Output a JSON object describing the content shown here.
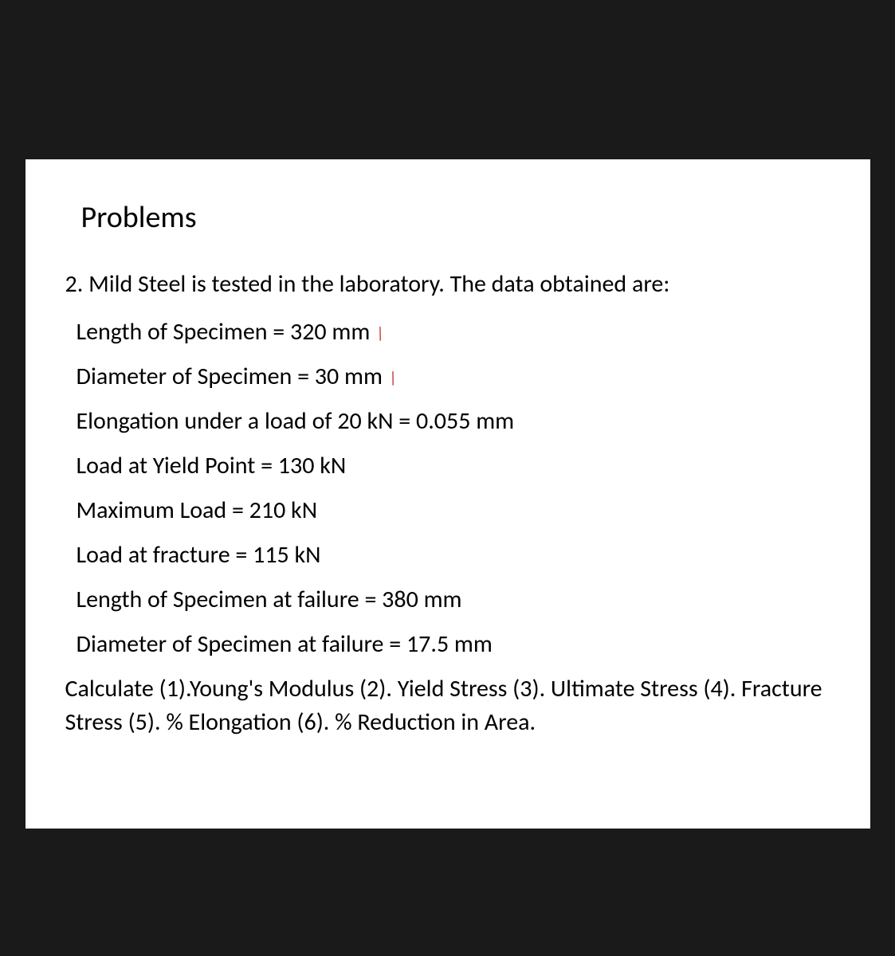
{
  "slide": {
    "title": "Problems",
    "problem_number": "2.",
    "intro": "Mild Steel is tested in the laboratory. The data obtained are:",
    "data_lines": [
      {
        "text": "Length of Specimen = 320 mm",
        "has_tick": true
      },
      {
        "text": "Diameter of Specimen = 30 mm",
        "has_tick": true
      },
      {
        "text": "Elongation under a load of 20 kN = 0.055 mm",
        "has_tick": false
      },
      {
        "text": "Load at Yield Point = 130 kN",
        "has_tick": false
      },
      {
        "text": "Maximum Load = 210 kN",
        "has_tick": false
      },
      {
        "text": "Load at fracture = 115 kN",
        "has_tick": false
      },
      {
        "text": "Length of Specimen at failure = 380 mm",
        "has_tick": false
      },
      {
        "text": "Diameter of Specimen at failure = 17.5 mm",
        "has_tick": false
      }
    ],
    "calculate": "Calculate (1).Young's Modulus (2). Yield Stress (3). Ultimate Stress (4). Fracture Stress (5). % Elongation (6). % Reduction in Area.",
    "tick_glyph": "/"
  },
  "style": {
    "background_color": "#1a1a1a",
    "slide_bg": "#ffffff",
    "text_color": "#000000",
    "tick_color": "#cc3333",
    "title_fontsize": 38,
    "body_fontsize": 30,
    "slide_width": 1060,
    "slide_height": 840
  }
}
